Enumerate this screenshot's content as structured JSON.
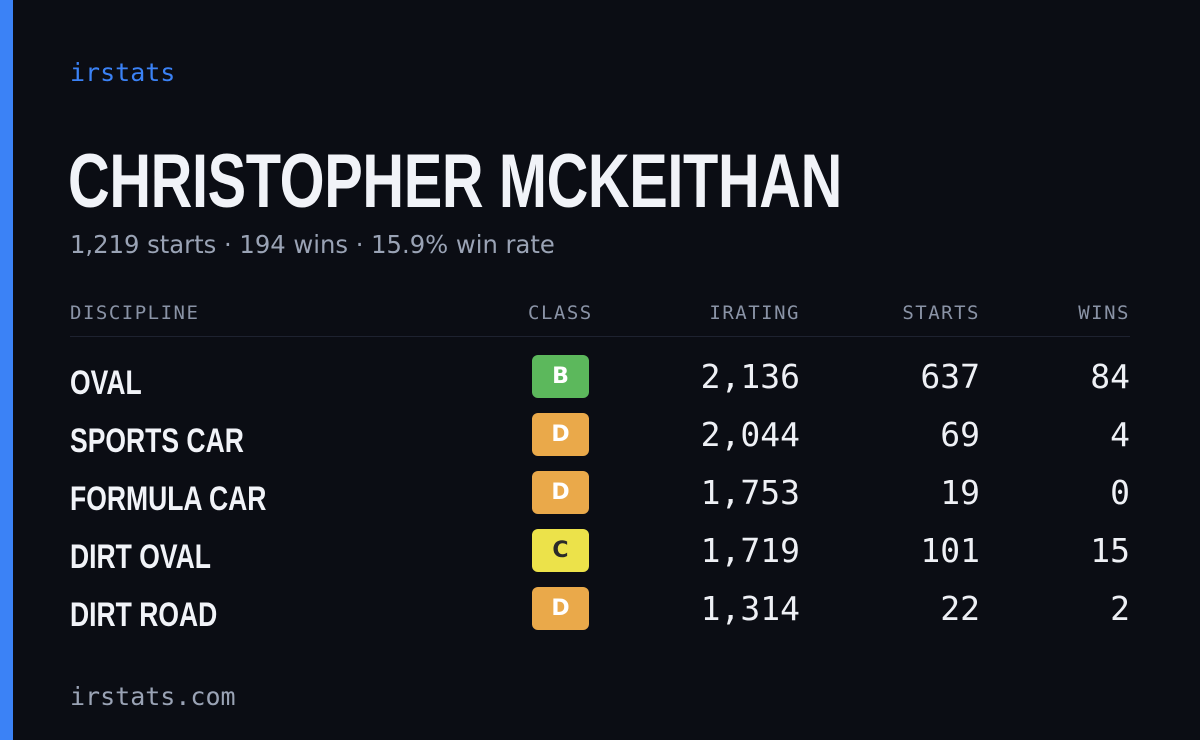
{
  "brand": "irstats",
  "player": {
    "name": "CHRISTOPHER MCKEITHAN"
  },
  "summary": {
    "starts": "1,219 starts",
    "wins": "194 wins",
    "win_rate": "15.9% win rate",
    "separator": "·"
  },
  "table": {
    "headers": {
      "discipline": "DISCIPLINE",
      "class": "CLASS",
      "irating": "IRATING",
      "starts": "STARTS",
      "wins": "WINS"
    },
    "rows": [
      {
        "discipline": "OVAL",
        "class": "B",
        "irating": "2,136",
        "starts": "637",
        "wins": "84"
      },
      {
        "discipline": "SPORTS CAR",
        "class": "D",
        "irating": "2,044",
        "starts": "69",
        "wins": "4"
      },
      {
        "discipline": "FORMULA CAR",
        "class": "D",
        "irating": "1,753",
        "starts": "19",
        "wins": "0"
      },
      {
        "discipline": "DIRT OVAL",
        "class": "C",
        "irating": "1,719",
        "starts": "101",
        "wins": "15"
      },
      {
        "discipline": "DIRT ROAD",
        "class": "D",
        "irating": "1,314",
        "starts": "22",
        "wins": "2"
      }
    ]
  },
  "class_colors": {
    "B": {
      "bg": "#5cb85c",
      "fg": "#ffffff"
    },
    "C": {
      "bg": "#ece24a",
      "fg": "#2a2a2a"
    },
    "D": {
      "bg": "#eaa94a",
      "fg": "#ffffff"
    }
  },
  "colors": {
    "accent": "#3b82f6",
    "background": "#0b0d14"
  },
  "footer": {
    "url": "irstats.com"
  }
}
